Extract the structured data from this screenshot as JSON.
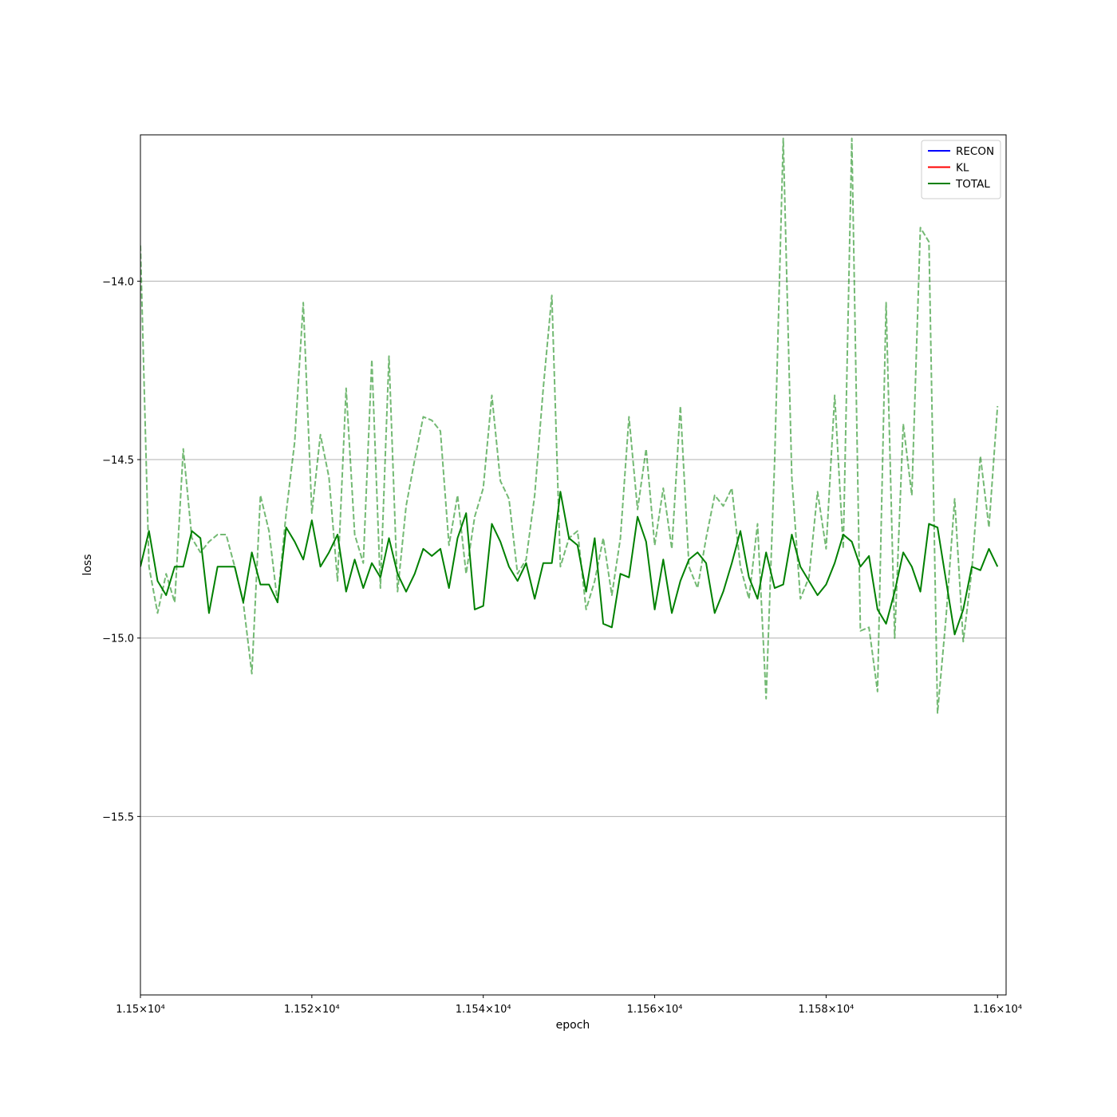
{
  "chart_data": {
    "type": "line",
    "xlabel": "epoch",
    "ylabel": "loss",
    "xlim": [
      11500,
      11601
    ],
    "ylim": [
      -16.0,
      -13.59
    ],
    "grid": "y-major",
    "legend_position": "top-right",
    "x_ticks": [
      {
        "value": 11500,
        "label": "1.15×10⁴"
      },
      {
        "value": 11520,
        "label": "1.152×10⁴"
      },
      {
        "value": 11540,
        "label": "1.154×10⁴"
      },
      {
        "value": 11560,
        "label": "1.156×10⁴"
      },
      {
        "value": 11580,
        "label": "1.158×10⁴"
      },
      {
        "value": 11600,
        "label": "1.16×10⁴"
      }
    ],
    "y_ticks": [
      {
        "value": -14.0,
        "label": "−14.0"
      },
      {
        "value": -14.5,
        "label": "−14.5"
      },
      {
        "value": -15.0,
        "label": "−15.0"
      },
      {
        "value": -15.5,
        "label": "−15.5"
      }
    ],
    "legend": [
      {
        "name": "RECON",
        "color": "#0000ff"
      },
      {
        "name": "KL",
        "color": "#ff0000"
      },
      {
        "name": "TOTAL",
        "color": "#008000"
      }
    ],
    "x_start": 11500,
    "x_step": 1,
    "series": [
      {
        "name": "TOTAL",
        "color": "#008000",
        "style": "solid",
        "values": [
          -14.8,
          -14.7,
          -14.84,
          -14.88,
          -14.8,
          -14.8,
          -14.7,
          -14.72,
          -14.93,
          -14.8,
          -14.8,
          -14.8,
          -14.9,
          -14.76,
          -14.85,
          -14.85,
          -14.9,
          -14.69,
          -14.73,
          -14.78,
          -14.67,
          -14.8,
          -14.76,
          -14.71,
          -14.87,
          -14.78,
          -14.86,
          -14.79,
          -14.83,
          -14.72,
          -14.82,
          -14.87,
          -14.82,
          -14.75,
          -14.77,
          -14.75,
          -14.86,
          -14.72,
          -14.65,
          -14.92,
          -14.91,
          -14.68,
          -14.73,
          -14.8,
          -14.84,
          -14.79,
          -14.89,
          -14.79,
          -14.79,
          -14.59,
          -14.72,
          -14.74,
          -14.87,
          -14.72,
          -14.96,
          -14.97,
          -14.82,
          -14.83,
          -14.66,
          -14.73,
          -14.92,
          -14.78,
          -14.93,
          -14.84,
          -14.78,
          -14.76,
          -14.79,
          -14.93,
          -14.87,
          -14.79,
          -14.7,
          -14.83,
          -14.89,
          -14.76,
          -14.86,
          -14.85,
          -14.71,
          -14.8,
          -14.84,
          -14.88,
          -14.85,
          -14.79,
          -14.71,
          -14.73,
          -14.8,
          -14.77,
          -14.92,
          -14.96,
          -14.87,
          -14.76,
          -14.8,
          -14.87,
          -14.68,
          -14.69,
          -14.84,
          -14.99,
          -14.92,
          -14.8,
          -14.81,
          -14.75,
          -14.8
        ]
      },
      {
        "name": "",
        "color": "#008000",
        "style": "dashed",
        "opacity": 0.55,
        "values": [
          -13.9,
          -14.8,
          -14.93,
          -14.82,
          -14.9,
          -14.47,
          -14.72,
          -14.76,
          -14.73,
          -14.71,
          -14.71,
          -14.8,
          -14.9,
          -15.1,
          -14.6,
          -14.7,
          -14.9,
          -14.65,
          -14.45,
          -14.06,
          -14.65,
          -14.43,
          -14.55,
          -14.84,
          -14.3,
          -14.71,
          -14.79,
          -14.22,
          -14.86,
          -14.21,
          -14.87,
          -14.63,
          -14.5,
          -14.38,
          -14.39,
          -14.42,
          -14.74,
          -14.6,
          -14.82,
          -14.66,
          -14.58,
          -14.32,
          -14.56,
          -14.61,
          -14.82,
          -14.78,
          -14.6,
          -14.3,
          -14.04,
          -14.8,
          -14.72,
          -14.7,
          -14.92,
          -14.84,
          -14.72,
          -14.88,
          -14.72,
          -14.38,
          -14.64,
          -14.47,
          -14.74,
          -14.58,
          -14.75,
          -14.35,
          -14.8,
          -14.86,
          -14.72,
          -14.6,
          -14.63,
          -14.58,
          -14.8,
          -14.89,
          -14.68,
          -15.17,
          -14.5,
          -13.6,
          -14.55,
          -14.89,
          -14.83,
          -14.59,
          -14.75,
          -14.32,
          -14.75,
          -13.6,
          -14.98,
          -14.97,
          -15.15,
          -14.06,
          -15.0,
          -14.4,
          -14.6,
          -13.85,
          -13.89,
          -15.21,
          -14.94,
          -14.61,
          -15.01,
          -14.81,
          -14.49,
          -14.69,
          -14.35
        ]
      }
    ]
  }
}
